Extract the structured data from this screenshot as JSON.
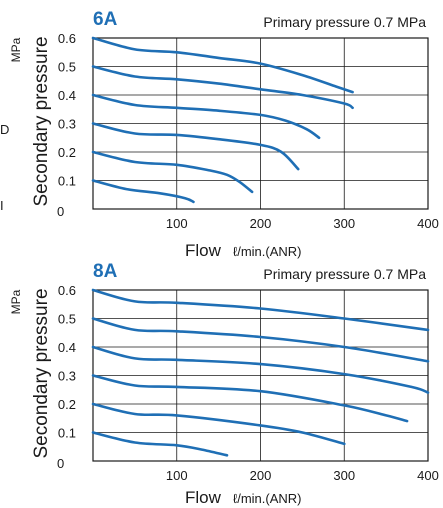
{
  "page": {
    "stray_left_text_1": "D",
    "stray_left_text_2": "I",
    "colors": {
      "series": "#1f6fb5",
      "title": "#1f6fb5",
      "axes": "#1a1a1a"
    }
  },
  "chart_data": [
    {
      "type": "line",
      "title": "6A",
      "subtitle": "Primary pressure 0.7 MPa",
      "xlabel": "Flow",
      "xlabel_unit": "ℓ/min.(ANR)",
      "ylabel": "Secondary pressure",
      "ylabel_unit": "MPa",
      "xlim": [
        0,
        400
      ],
      "ylim": [
        0,
        0.6
      ],
      "xticks": [
        "100",
        "200",
        "300",
        "400"
      ],
      "yticks": [
        "0",
        "0.1",
        "0.2",
        "0.3",
        "0.4",
        "0.5",
        "0.6"
      ],
      "grid": true,
      "series": [
        {
          "points": [
            [
              0,
              0.6
            ],
            [
              50,
              0.56
            ],
            [
              100,
              0.55
            ],
            [
              150,
              0.53
            ],
            [
              200,
              0.51
            ],
            [
              250,
              0.47
            ],
            [
              290,
              0.43
            ],
            [
              310,
              0.41
            ]
          ]
        },
        {
          "points": [
            [
              0,
              0.5
            ],
            [
              50,
              0.465
            ],
            [
              100,
              0.455
            ],
            [
              150,
              0.44
            ],
            [
              200,
              0.42
            ],
            [
              250,
              0.4
            ],
            [
              300,
              0.37
            ],
            [
              310,
              0.355
            ]
          ]
        },
        {
          "points": [
            [
              0,
              0.4
            ],
            [
              50,
              0.365
            ],
            [
              100,
              0.355
            ],
            [
              150,
              0.345
            ],
            [
              200,
              0.33
            ],
            [
              230,
              0.31
            ],
            [
              255,
              0.28
            ],
            [
              270,
              0.25
            ]
          ]
        },
        {
          "points": [
            [
              0,
              0.3
            ],
            [
              50,
              0.265
            ],
            [
              100,
              0.26
            ],
            [
              150,
              0.245
            ],
            [
              200,
              0.225
            ],
            [
              225,
              0.2
            ],
            [
              245,
              0.14
            ]
          ]
        },
        {
          "points": [
            [
              0,
              0.2
            ],
            [
              50,
              0.165
            ],
            [
              100,
              0.155
            ],
            [
              140,
              0.135
            ],
            [
              160,
              0.12
            ],
            [
              175,
              0.095
            ],
            [
              190,
              0.06
            ]
          ]
        },
        {
          "points": [
            [
              0,
              0.1
            ],
            [
              40,
              0.07
            ],
            [
              80,
              0.055
            ],
            [
              110,
              0.038
            ],
            [
              120,
              0.025
            ]
          ]
        }
      ]
    },
    {
      "type": "line",
      "title": "8A",
      "subtitle": "Primary pressure 0.7 MPa",
      "xlabel": "Flow",
      "xlabel_unit": "ℓ/min.(ANR)",
      "ylabel": "Secondary pressure",
      "ylabel_unit": "MPa",
      "xlim": [
        0,
        400
      ],
      "ylim": [
        0,
        0.6
      ],
      "xticks": [
        "100",
        "200",
        "300",
        "400"
      ],
      "yticks": [
        "0",
        "0.1",
        "0.2",
        "0.3",
        "0.4",
        "0.5",
        "0.6"
      ],
      "grid": true,
      "series": [
        {
          "points": [
            [
              0,
              0.6
            ],
            [
              50,
              0.56
            ],
            [
              100,
              0.555
            ],
            [
              200,
              0.535
            ],
            [
              300,
              0.5
            ],
            [
              400,
              0.46
            ]
          ]
        },
        {
          "points": [
            [
              0,
              0.5
            ],
            [
              50,
              0.46
            ],
            [
              100,
              0.455
            ],
            [
              200,
              0.435
            ],
            [
              300,
              0.4
            ],
            [
              400,
              0.35
            ]
          ]
        },
        {
          "points": [
            [
              0,
              0.4
            ],
            [
              50,
              0.36
            ],
            [
              100,
              0.355
            ],
            [
              200,
              0.34
            ],
            [
              300,
              0.305
            ],
            [
              380,
              0.26
            ],
            [
              400,
              0.24
            ]
          ]
        },
        {
          "points": [
            [
              0,
              0.3
            ],
            [
              50,
              0.265
            ],
            [
              100,
              0.26
            ],
            [
              200,
              0.245
            ],
            [
              300,
              0.195
            ],
            [
              350,
              0.16
            ],
            [
              375,
              0.14
            ]
          ]
        },
        {
          "points": [
            [
              0,
              0.2
            ],
            [
              50,
              0.165
            ],
            [
              100,
              0.16
            ],
            [
              200,
              0.125
            ],
            [
              250,
              0.1
            ],
            [
              300,
              0.06
            ]
          ]
        },
        {
          "points": [
            [
              0,
              0.1
            ],
            [
              50,
              0.065
            ],
            [
              100,
              0.055
            ],
            [
              130,
              0.04
            ],
            [
              160,
              0.02
            ]
          ]
        }
      ]
    }
  ]
}
